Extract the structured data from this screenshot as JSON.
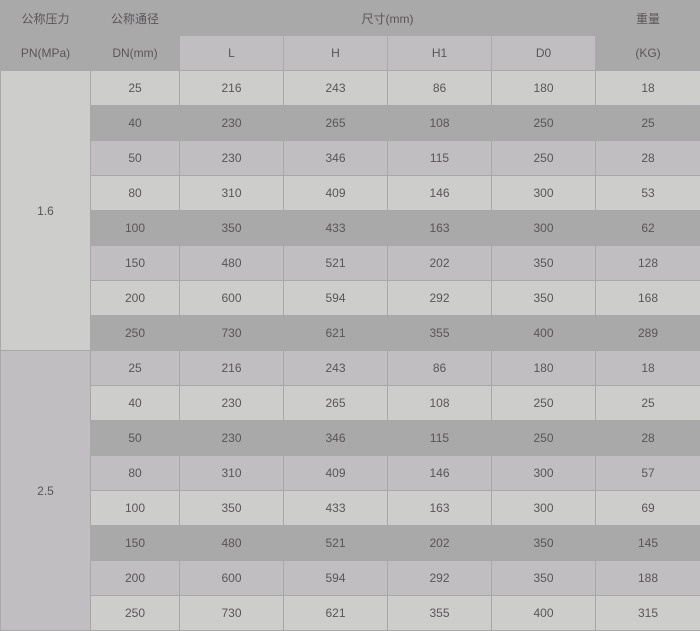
{
  "header": {
    "pn_label_cn": "公称压力",
    "pn_label": "PN(MPa)",
    "dn_label_cn": "公称通径",
    "dn_label": "DN(mm)",
    "dim_label": "尺寸(mm)",
    "dim_columns": [
      "L",
      "H",
      "H1",
      "D0"
    ],
    "weight_label_cn": "重量",
    "weight_label": "(KG)"
  },
  "colors": {
    "light": "#cdcecb",
    "medium": "#c0bec0",
    "dark": "#a9a9a9",
    "text": "#5a5558"
  },
  "groups": [
    {
      "pn": "1.6",
      "rows": [
        [
          "25",
          "216",
          "243",
          "86",
          "180",
          "18"
        ],
        [
          "40",
          "230",
          "265",
          "108",
          "250",
          "25"
        ],
        [
          "50",
          "230",
          "346",
          "115",
          "250",
          "28"
        ],
        [
          "80",
          "310",
          "409",
          "146",
          "300",
          "53"
        ],
        [
          "100",
          "350",
          "433",
          "163",
          "300",
          "62"
        ],
        [
          "150",
          "480",
          "521",
          "202",
          "350",
          "128"
        ],
        [
          "200",
          "600",
          "594",
          "292",
          "350",
          "168"
        ],
        [
          "250",
          "730",
          "621",
          "355",
          "400",
          "289"
        ]
      ]
    },
    {
      "pn": "2.5",
      "rows": [
        [
          "25",
          "216",
          "243",
          "86",
          "180",
          "18"
        ],
        [
          "40",
          "230",
          "265",
          "108",
          "250",
          "25"
        ],
        [
          "50",
          "230",
          "346",
          "115",
          "250",
          "28"
        ],
        [
          "80",
          "310",
          "409",
          "146",
          "300",
          "57"
        ],
        [
          "100",
          "350",
          "433",
          "163",
          "300",
          "69"
        ],
        [
          "150",
          "480",
          "521",
          "202",
          "350",
          "145"
        ],
        [
          "200",
          "600",
          "594",
          "292",
          "350",
          "188"
        ],
        [
          "250",
          "730",
          "621",
          "355",
          "400",
          "315"
        ]
      ]
    }
  ]
}
